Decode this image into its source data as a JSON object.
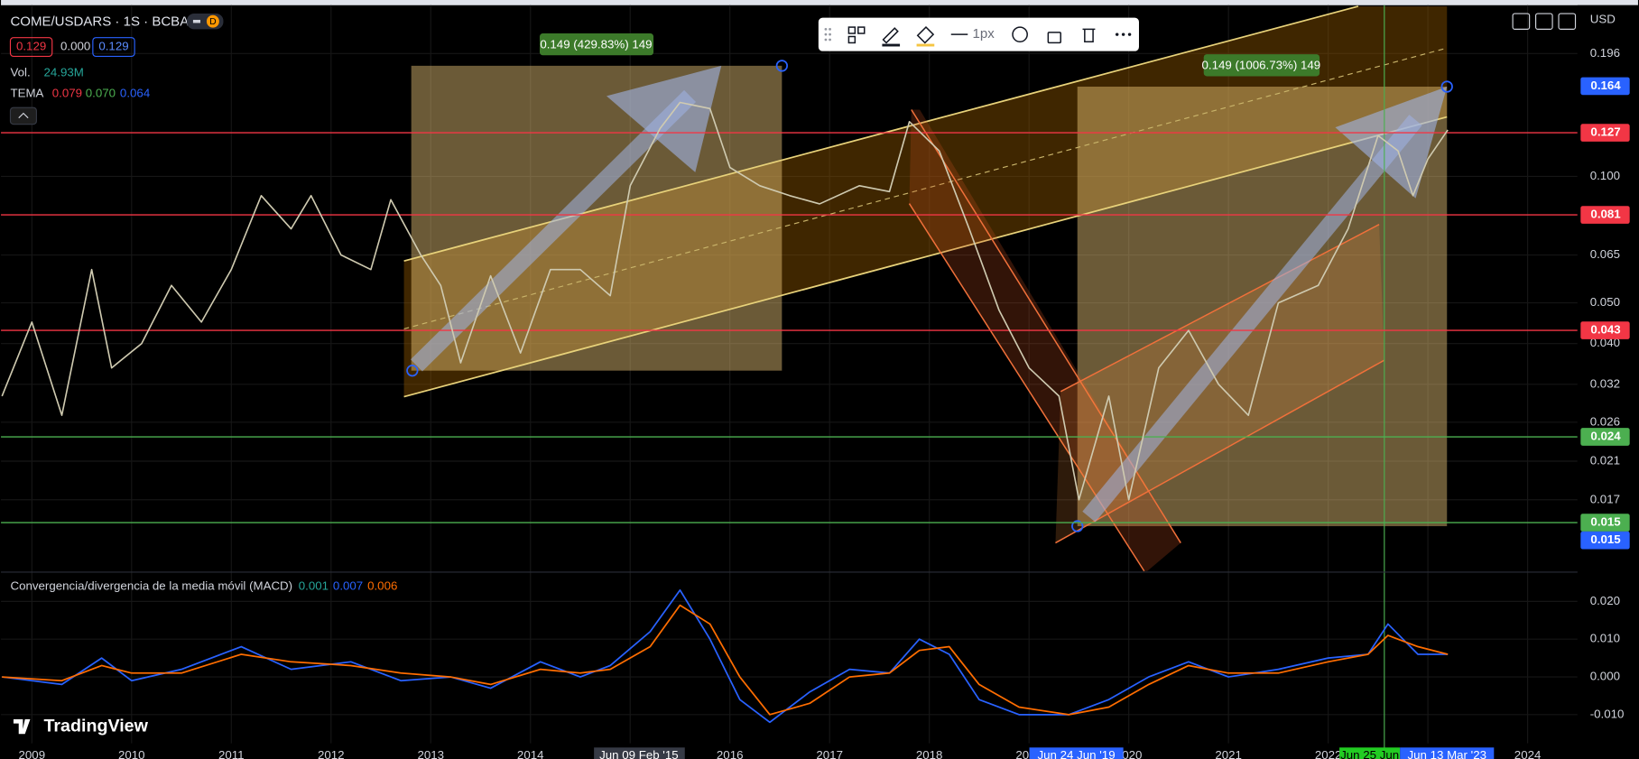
{
  "header": {
    "badge": "D",
    "quotes": [
      "0.129",
      "0.000",
      "0.129"
    ],
    "volume_label": "Vol.",
    "volume": "24.93M",
    "indicator": "TEMA",
    "indicator_values": [
      "0.079",
      "0.070",
      "0.064"
    ],
    "currency": "USD"
  },
  "toolbar": {
    "width_label": "1px"
  },
  "measures": [
    "0.149 (429.83%) 149",
    "0.149 (1006.73%) 149"
  ],
  "x_badges": [
    "Jun 09 Feb '15",
    "Jun 24 Jun '19",
    "Jun 25 Jun",
    "Jun 13 Mar '23"
  ],
  "brand": "TradingView",
  "chart_data": [
    {
      "type": "line",
      "title": "COME/USDARS · 1S · BCBA",
      "log_scale": true,
      "grid": true,
      "color": "#cfcab0",
      "xlim": [
        2008.69,
        2024.5
      ],
      "xticks": [
        2009,
        2010,
        2011,
        2012,
        2013,
        2014,
        2015,
        2016,
        2017,
        2018,
        2019,
        2020,
        2021,
        2022,
        2023,
        2024
      ],
      "ylim": [
        0.0115,
        0.254
      ],
      "yticks": [
        0.196,
        {
          "value": 0.1,
          "label": "0.100"
        },
        0.065,
        {
          "value": 0.05,
          "label": "0.050"
        },
        {
          "value": 0.04,
          "label": "0.040"
        },
        0.032,
        0.026,
        0.021,
        0.017
      ],
      "price_tags": [
        {
          "value": 0.164,
          "color": "#2962ff",
          "line": false
        },
        {
          "value": 0.127,
          "color": "#f23645",
          "line": true
        },
        {
          "value": 0.081,
          "color": "#f23645",
          "line": true
        },
        {
          "value": 0.043,
          "color": "#f23645",
          "line": true
        },
        {
          "value": 0.024,
          "color": "#4caf50",
          "line": true
        },
        {
          "value": 0.015,
          "color": "#4caf50",
          "line": true
        },
        {
          "value": 0.015,
          "color": "#2962ff",
          "line": false
        }
      ],
      "x": [
        2008.7,
        2009.0,
        2009.3,
        2009.6,
        2009.8,
        2010.1,
        2010.4,
        2010.7,
        2011.0,
        2011.3,
        2011.6,
        2011.8,
        2012.1,
        2012.4,
        2012.6,
        2012.9,
        2013.1,
        2013.3,
        2013.6,
        2013.9,
        2014.2,
        2014.5,
        2014.8,
        2015.0,
        2015.3,
        2015.5,
        2015.8,
        2016.0,
        2016.3,
        2016.6,
        2016.9,
        2017.3,
        2017.6,
        2017.8,
        2018.1,
        2018.4,
        2018.7,
        2019.0,
        2019.3,
        2019.5,
        2019.8,
        2020.0,
        2020.3,
        2020.6,
        2020.9,
        2021.2,
        2021.5,
        2021.9,
        2022.2,
        2022.5,
        2022.7,
        2022.85,
        2023.0,
        2023.2
      ],
      "values": [
        0.03,
        0.045,
        0.027,
        0.06,
        0.035,
        0.04,
        0.055,
        0.045,
        0.06,
        0.09,
        0.075,
        0.09,
        0.065,
        0.06,
        0.088,
        0.065,
        0.055,
        0.036,
        0.058,
        0.038,
        0.06,
        0.06,
        0.052,
        0.095,
        0.13,
        0.15,
        0.145,
        0.105,
        0.095,
        0.09,
        0.086,
        0.095,
        0.092,
        0.135,
        0.115,
        0.075,
        0.048,
        0.035,
        0.03,
        0.017,
        0.03,
        0.017,
        0.035,
        0.043,
        0.032,
        0.027,
        0.05,
        0.055,
        0.075,
        0.125,
        0.115,
        0.09,
        0.11,
        0.129
      ]
    },
    {
      "type": "line",
      "title": "Convergencia/divergencia de la media móvil (MACD)",
      "legend_values": [
        {
          "value": 0.001,
          "color": "#26a69a"
        },
        {
          "value": 0.007,
          "color": "#2962ff"
        },
        {
          "value": 0.006,
          "color": "#ff6d00"
        }
      ],
      "xlim": [
        2008.69,
        2024.5
      ],
      "ylim": [
        -0.0176,
        0.0272
      ],
      "yticks": [
        {
          "value": 0.02,
          "label": "0.020"
        },
        {
          "value": 0.01,
          "label": "0.010"
        },
        {
          "value": 0,
          "label": "0.000"
        },
        {
          "value": -0.01,
          "label": "-0.010"
        }
      ],
      "x": [
        2008.7,
        2009.3,
        2009.7,
        2010.0,
        2010.5,
        2011.1,
        2011.6,
        2012.2,
        2012.7,
        2013.2,
        2013.6,
        2014.1,
        2014.5,
        2014.8,
        2015.2,
        2015.5,
        2015.8,
        2016.1,
        2016.4,
        2016.8,
        2017.2,
        2017.6,
        2017.9,
        2018.2,
        2018.5,
        2018.9,
        2019.4,
        2019.8,
        2020.2,
        2020.6,
        2021.0,
        2021.5,
        2022.0,
        2022.4,
        2022.6,
        2022.9,
        2023.2
      ],
      "series": [
        {
          "color": "#2962ff",
          "values": [
            0.0,
            -0.002,
            0.005,
            -0.001,
            0.002,
            0.008,
            0.002,
            0.004,
            -0.001,
            0.0,
            -0.003,
            0.004,
            0.0,
            0.003,
            0.012,
            0.023,
            0.01,
            -0.006,
            -0.012,
            -0.004,
            0.002,
            0.001,
            0.01,
            0.006,
            -0.006,
            -0.01,
            -0.01,
            -0.006,
            0.0,
            0.004,
            0.0,
            0.002,
            0.005,
            0.006,
            0.014,
            0.006,
            0.006
          ]
        },
        {
          "color": "#ff6d00",
          "values": [
            0.0,
            -0.001,
            0.003,
            0.001,
            0.001,
            0.006,
            0.004,
            0.003,
            0.001,
            0.0,
            -0.002,
            0.002,
            0.001,
            0.002,
            0.008,
            0.019,
            0.014,
            0.0,
            -0.01,
            -0.007,
            0.0,
            0.001,
            0.007,
            0.008,
            -0.002,
            -0.008,
            -0.01,
            -0.008,
            -0.002,
            0.003,
            0.001,
            0.001,
            0.004,
            0.006,
            0.011,
            0.008,
            0.006
          ]
        }
      ]
    }
  ]
}
